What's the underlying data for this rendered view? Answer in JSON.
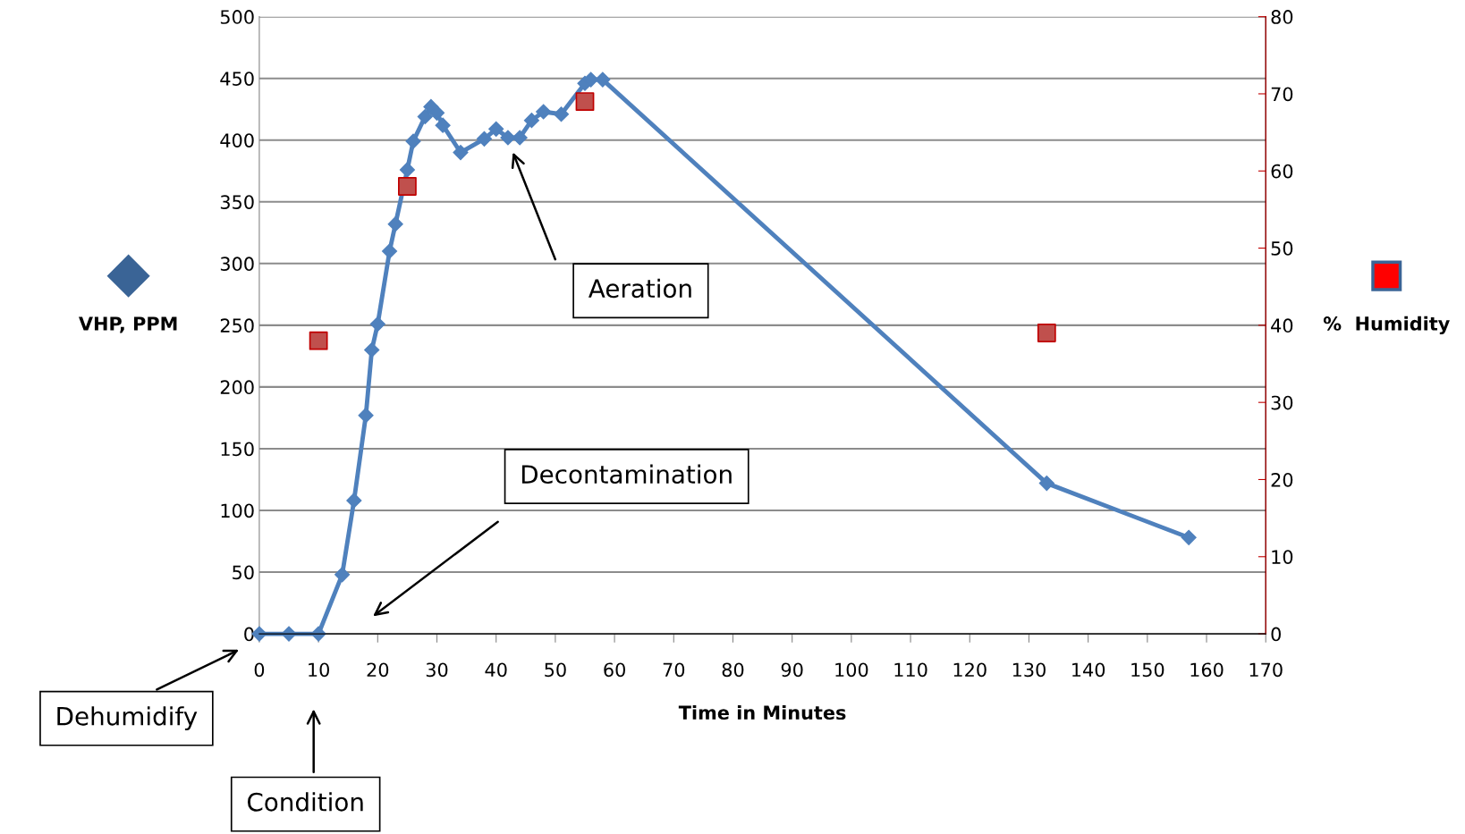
{
  "chart_data": {
    "type": "line",
    "xlabel": "Time in Minutes",
    "ylabel": "VHP, PPM",
    "y2label": "%  Humidity",
    "series": [
      {
        "color": "#4f81bd",
        "marker": "diamond",
        "x": [
          0,
          5,
          10,
          14,
          16,
          18,
          19,
          20,
          22,
          23,
          25,
          26,
          28,
          29,
          30,
          31,
          34,
          38,
          40,
          42,
          44,
          46,
          48,
          51,
          55,
          56,
          58,
          133,
          157
        ],
        "values": [
          0,
          0,
          0,
          48,
          108,
          177,
          230,
          251,
          310,
          332,
          376,
          399,
          419,
          427,
          422,
          412,
          390,
          401,
          409,
          402,
          402,
          416,
          423,
          421,
          446,
          449,
          449,
          122,
          78
        ]
      },
      {
        "type": "scatter",
        "axis": "y2",
        "color": "#c0504d",
        "marker": "square",
        "x": [
          10,
          25,
          55,
          133
        ],
        "values": [
          38,
          58,
          69,
          39
        ]
      }
    ],
    "xlim": [
      0,
      170
    ],
    "xticks": [
      0,
      10,
      20,
      30,
      40,
      50,
      60,
      70,
      80,
      90,
      100,
      110,
      120,
      130,
      140,
      150,
      160,
      170
    ],
    "ylim": [
      0,
      500
    ],
    "yticks": [
      0,
      50,
      100,
      150,
      200,
      250,
      300,
      350,
      400,
      450,
      500
    ],
    "y2lim": [
      0,
      80
    ],
    "y2ticks": [
      0,
      10,
      20,
      30,
      40,
      50,
      60,
      70,
      80
    ],
    "grid": "y",
    "legend": false,
    "annotations": [
      "Dehumidify",
      "Condition",
      "Decontamination",
      "Aeration"
    ]
  }
}
